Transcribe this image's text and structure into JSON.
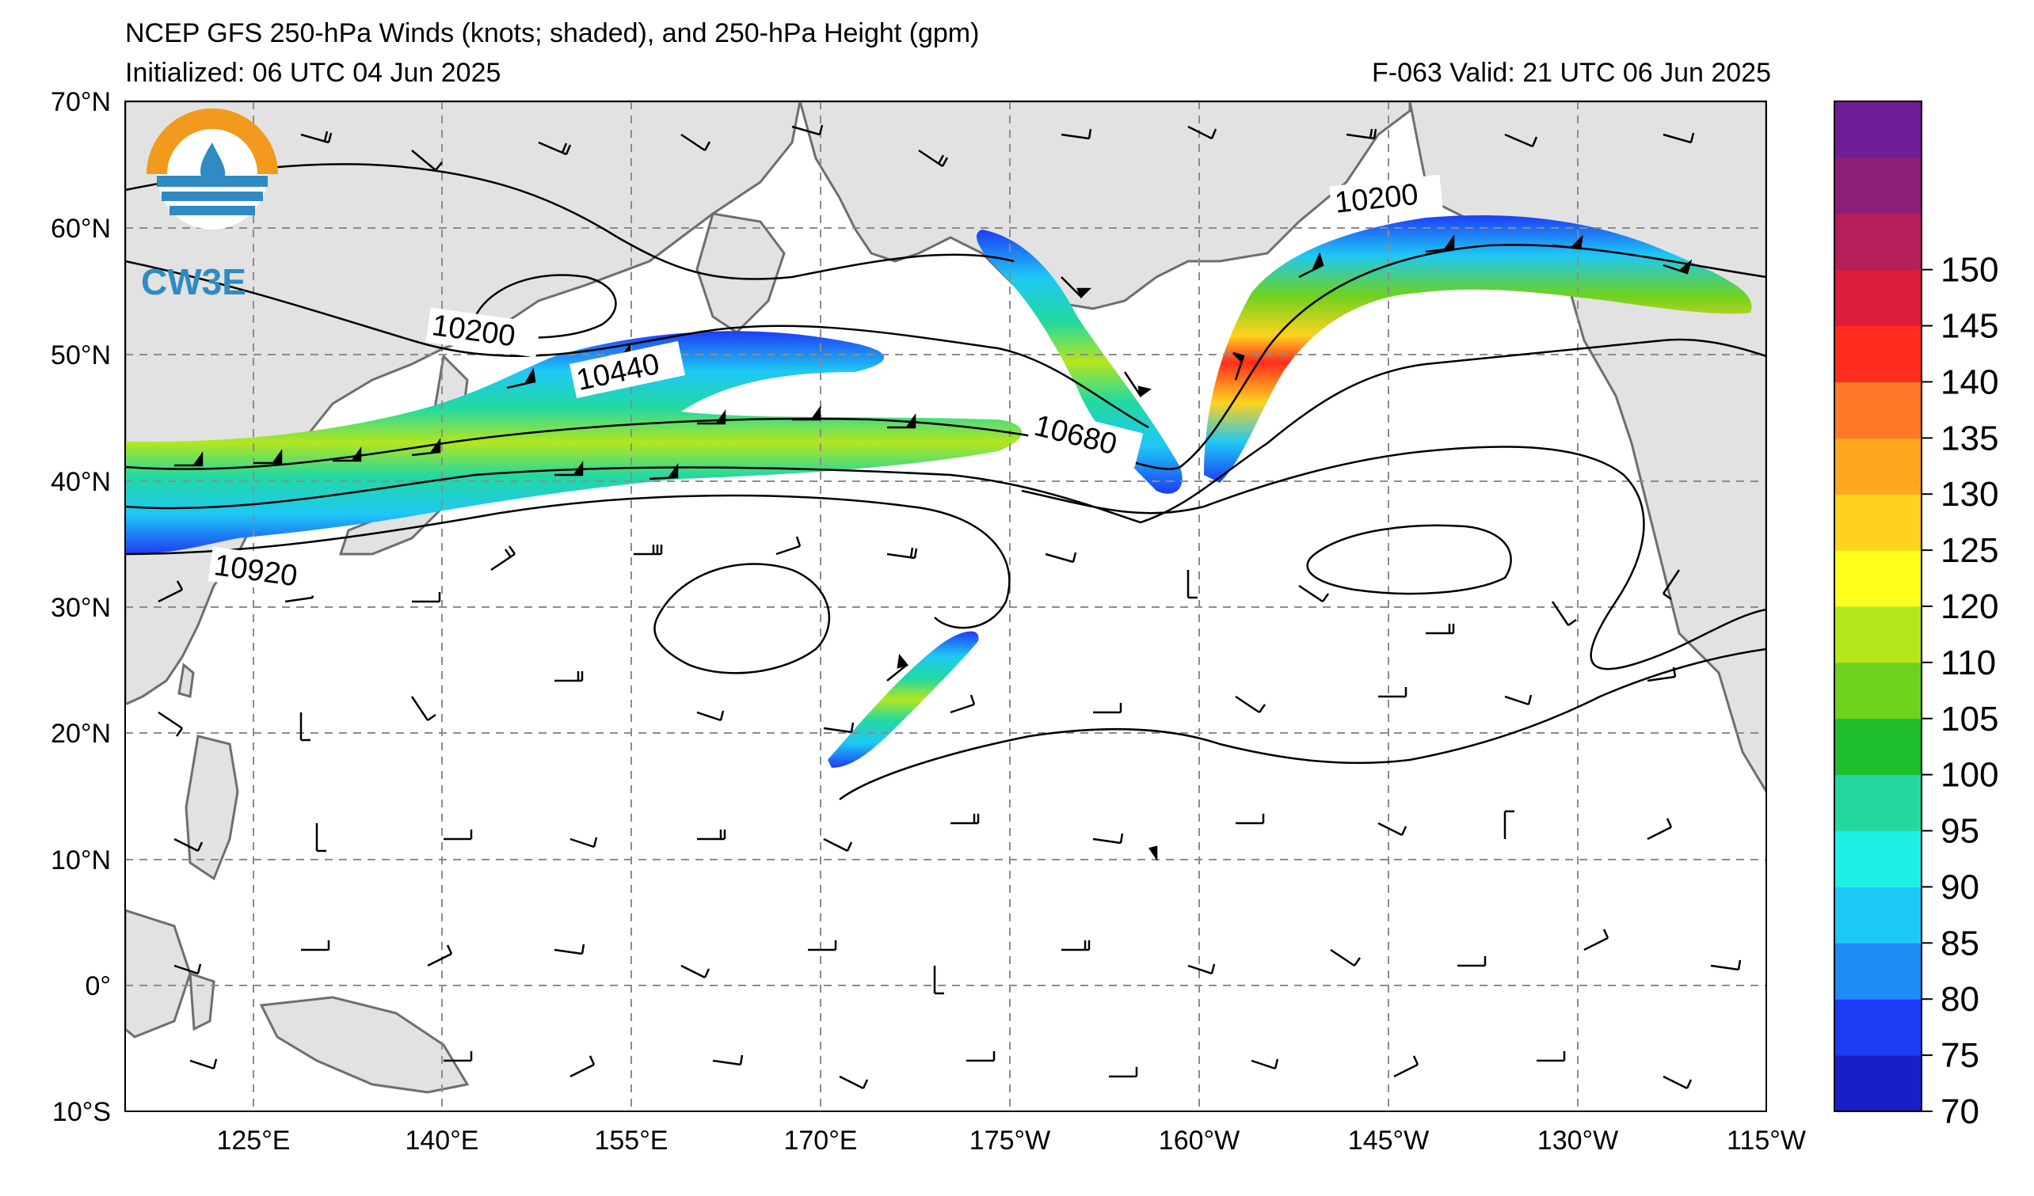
{
  "header": {
    "title": "NCEP GFS 250-hPa Winds (knots; shaded), and 250-hPa Height (gpm)",
    "initialized": "Initialized: 06 UTC 04 Jun 2025",
    "valid": "F-063  Valid: 21 UTC 06 Jun 2025"
  },
  "logo": {
    "text": "CW3E"
  },
  "axes": {
    "lat_labels": [
      "70°N",
      "60°N",
      "50°N",
      "40°N",
      "30°N",
      "20°N",
      "10°N",
      "0°",
      "10°S"
    ],
    "lon_labels": [
      "125°E",
      "140°E",
      "155°E",
      "170°E",
      "175°W",
      "160°W",
      "145°W",
      "130°W",
      "115°W"
    ]
  },
  "contour_labels": [
    "10200",
    "10440",
    "10680",
    "10920",
    "10200"
  ],
  "colorbar": {
    "labels": [
      "70",
      "75",
      "80",
      "85",
      "90",
      "95",
      "100",
      "105",
      "110",
      "120",
      "125",
      "130",
      "135",
      "140",
      "145",
      "150"
    ],
    "colors": [
      "#1a1ec8",
      "#1e3cf5",
      "#1e8cf5",
      "#1ec8f5",
      "#1ef0e6",
      "#23d9a0",
      "#1ebe2d",
      "#6ed21e",
      "#b4e61e",
      "#ffff1e",
      "#ffd21e",
      "#ffa51e",
      "#ff7828",
      "#ff2d1e",
      "#dc1e3c",
      "#b41e5a",
      "#8c1e78",
      "#6e1e96"
    ]
  },
  "colors": {
    "land": "#e2e2e2",
    "coast": "#6e6e6e",
    "grid": "#8c8c8c"
  }
}
